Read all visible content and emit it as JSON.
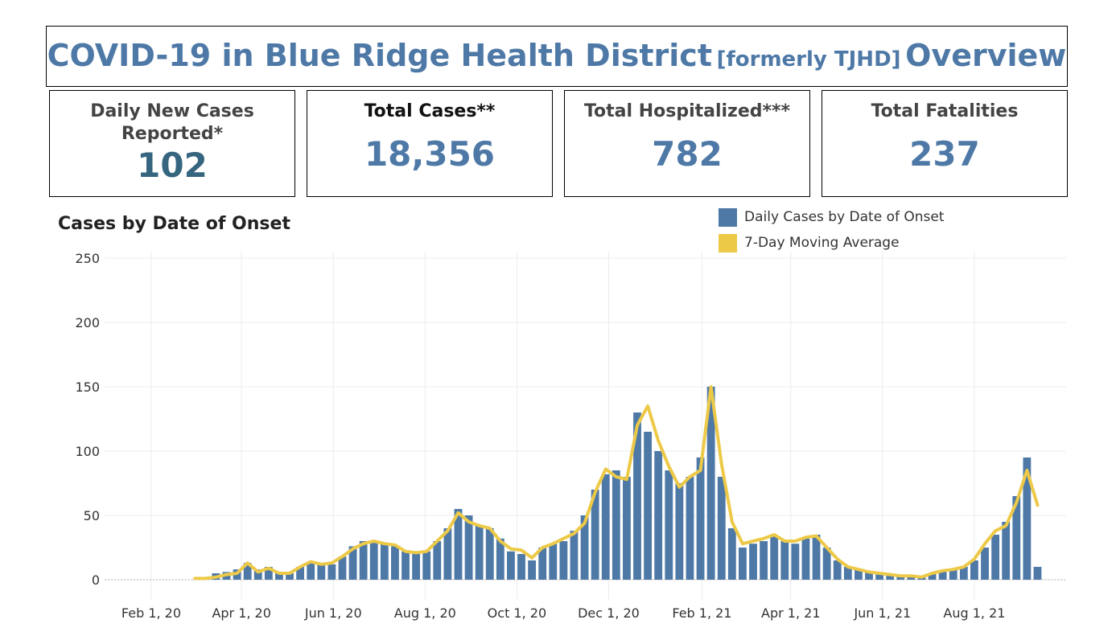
{
  "header": {
    "title_main_1": "COVID-19 in Blue Ridge Health District",
    "title_sub": "[formerly TJHD]",
    "title_main_2": "Overview"
  },
  "kpis": [
    {
      "label": "Daily New Cases Reported*",
      "value": "102"
    },
    {
      "label": "Total Cases**",
      "value": "18,356"
    },
    {
      "label": "Total Hospitalized***",
      "value": "782"
    },
    {
      "label": "Total Fatalities",
      "value": "237"
    }
  ],
  "colors": {
    "bar": "#4e79a7",
    "average": "#edc948",
    "accent": "#4e79a7",
    "daily_value": "#35657f"
  },
  "chart_data": {
    "type": "bar",
    "title": "Cases by Date of Onset",
    "xlabel": "",
    "ylabel": "",
    "ylim": [
      0,
      250
    ],
    "yticks": [
      0,
      50,
      100,
      150,
      200,
      250
    ],
    "xticks": [
      "Feb 1, 20",
      "Apr 1, 20",
      "Jun 1, 20",
      "Aug 1, 20",
      "Oct 1, 20",
      "Dec 1, 20",
      "Feb 1, 21",
      "Apr 1, 21",
      "Jun 1, 21",
      "Aug 1, 21"
    ],
    "xlim": [
      "2020-01-01",
      "2021-10-01"
    ],
    "grid": true,
    "legend_position": "top-right",
    "series": [
      {
        "name": "Daily Cases by Date of Onset",
        "type": "bar",
        "x": [
          "2020-03-01",
          "2020-03-08",
          "2020-03-15",
          "2020-03-22",
          "2020-03-29",
          "2020-04-05",
          "2020-04-12",
          "2020-04-19",
          "2020-04-26",
          "2020-05-03",
          "2020-05-10",
          "2020-05-17",
          "2020-05-24",
          "2020-05-31",
          "2020-06-07",
          "2020-06-14",
          "2020-06-21",
          "2020-06-28",
          "2020-07-05",
          "2020-07-12",
          "2020-07-19",
          "2020-07-26",
          "2020-08-02",
          "2020-08-09",
          "2020-08-16",
          "2020-08-23",
          "2020-08-30",
          "2020-09-06",
          "2020-09-13",
          "2020-09-20",
          "2020-09-27",
          "2020-10-04",
          "2020-10-11",
          "2020-10-18",
          "2020-10-25",
          "2020-11-01",
          "2020-11-08",
          "2020-11-15",
          "2020-11-22",
          "2020-11-29",
          "2020-12-06",
          "2020-12-13",
          "2020-12-20",
          "2020-12-27",
          "2021-01-03",
          "2021-01-10",
          "2021-01-17",
          "2021-01-24",
          "2021-01-31",
          "2021-02-07",
          "2021-02-14",
          "2021-02-21",
          "2021-02-28",
          "2021-03-07",
          "2021-03-14",
          "2021-03-21",
          "2021-03-28",
          "2021-04-04",
          "2021-04-11",
          "2021-04-18",
          "2021-04-25",
          "2021-05-02",
          "2021-05-09",
          "2021-05-16",
          "2021-05-23",
          "2021-05-30",
          "2021-06-06",
          "2021-06-13",
          "2021-06-20",
          "2021-06-27",
          "2021-07-04",
          "2021-07-11",
          "2021-07-18",
          "2021-07-25",
          "2021-08-01",
          "2021-08-08",
          "2021-08-15",
          "2021-08-22",
          "2021-08-29",
          "2021-09-05",
          "2021-09-12"
        ],
        "values": [
          0,
          2,
          5,
          6,
          8,
          13,
          8,
          10,
          6,
          5,
          10,
          14,
          12,
          12,
          18,
          26,
          30,
          30,
          28,
          26,
          22,
          22,
          22,
          30,
          40,
          55,
          50,
          42,
          40,
          32,
          22,
          20,
          15,
          25,
          28,
          30,
          38,
          50,
          70,
          82,
          85,
          80,
          130,
          115,
          100,
          85,
          75,
          80,
          95,
          150,
          80,
          40,
          25,
          28,
          30,
          34,
          30,
          28,
          32,
          35,
          25,
          15,
          10,
          8,
          6,
          4,
          4,
          3,
          3,
          2,
          5,
          7,
          8,
          10,
          15,
          25,
          35,
          45,
          65,
          95,
          10
        ]
      },
      {
        "name": "7-Day Moving Average",
        "type": "line",
        "x": [
          "2020-03-01",
          "2020-03-08",
          "2020-03-15",
          "2020-03-22",
          "2020-03-29",
          "2020-04-05",
          "2020-04-12",
          "2020-04-19",
          "2020-04-26",
          "2020-05-03",
          "2020-05-10",
          "2020-05-17",
          "2020-05-24",
          "2020-05-31",
          "2020-06-07",
          "2020-06-14",
          "2020-06-21",
          "2020-06-28",
          "2020-07-05",
          "2020-07-12",
          "2020-07-19",
          "2020-07-26",
          "2020-08-02",
          "2020-08-09",
          "2020-08-16",
          "2020-08-23",
          "2020-08-30",
          "2020-09-06",
          "2020-09-13",
          "2020-09-20",
          "2020-09-27",
          "2020-10-04",
          "2020-10-11",
          "2020-10-18",
          "2020-10-25",
          "2020-11-01",
          "2020-11-08",
          "2020-11-15",
          "2020-11-22",
          "2020-11-29",
          "2020-12-06",
          "2020-12-13",
          "2020-12-20",
          "2020-12-27",
          "2021-01-03",
          "2021-01-10",
          "2021-01-17",
          "2021-01-24",
          "2021-01-31",
          "2021-02-07",
          "2021-02-14",
          "2021-02-21",
          "2021-02-28",
          "2021-03-07",
          "2021-03-14",
          "2021-03-21",
          "2021-03-28",
          "2021-04-04",
          "2021-04-11",
          "2021-04-18",
          "2021-04-25",
          "2021-05-02",
          "2021-05-09",
          "2021-05-16",
          "2021-05-23",
          "2021-05-30",
          "2021-06-06",
          "2021-06-13",
          "2021-06-20",
          "2021-06-27",
          "2021-07-04",
          "2021-07-11",
          "2021-07-18",
          "2021-07-25",
          "2021-08-01",
          "2021-08-08",
          "2021-08-15",
          "2021-08-22",
          "2021-08-29",
          "2021-09-05",
          "2021-09-12"
        ],
        "values": [
          1,
          1,
          2,
          4,
          5,
          13,
          6,
          9,
          5,
          5,
          10,
          14,
          12,
          13,
          18,
          24,
          28,
          30,
          28,
          27,
          22,
          21,
          22,
          30,
          38,
          52,
          45,
          42,
          40,
          30,
          24,
          23,
          17,
          25,
          28,
          32,
          36,
          44,
          68,
          86,
          80,
          78,
          120,
          135,
          108,
          88,
          72,
          80,
          85,
          150,
          90,
          45,
          28,
          30,
          32,
          35,
          30,
          30,
          33,
          34,
          25,
          16,
          10,
          8,
          6,
          5,
          4,
          3,
          3,
          2,
          5,
          7,
          8,
          10,
          16,
          28,
          38,
          42,
          60,
          85,
          58
        ]
      }
    ]
  }
}
